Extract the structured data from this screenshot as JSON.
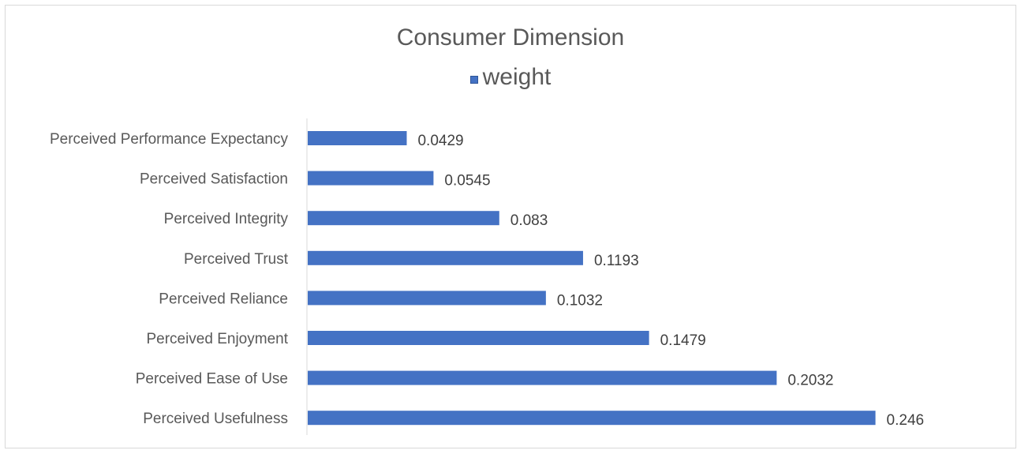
{
  "chart_data": {
    "type": "bar",
    "orientation": "horizontal",
    "title": "Consumer Dimension",
    "legend": {
      "position": "top",
      "entries": [
        "weight"
      ]
    },
    "categories": [
      "Perceived Performance Expectancy",
      "Perceived Satisfaction",
      "Perceived Integrity",
      "Perceived Trust",
      "Perceived Reliance",
      "Perceived Enjoyment",
      "Perceived Ease of Use",
      "Perceived Usefulness"
    ],
    "series": [
      {
        "name": "weight",
        "color": "#4472c4",
        "values": [
          0.0429,
          0.0545,
          0.083,
          0.1193,
          0.1032,
          0.1479,
          0.2032,
          0.246
        ],
        "data_labels": [
          "0.0429",
          "0.0545",
          "0.083",
          "0.1193",
          "0.1032",
          "0.1479",
          "0.2032",
          "0.246"
        ]
      }
    ],
    "xlim": [
      0,
      0.25
    ],
    "grid": false,
    "axis_color": "#d9d9d9"
  }
}
